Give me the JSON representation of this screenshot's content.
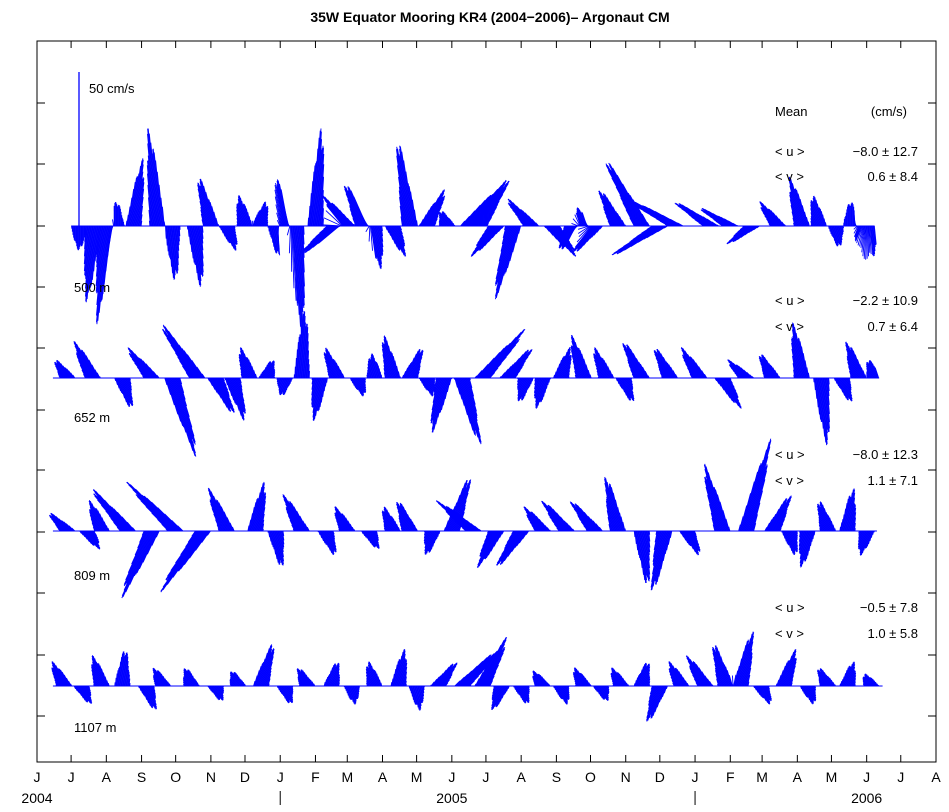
{
  "chart_data": {
    "type": "line",
    "subtype": "current velocity stick plot",
    "title": "35W Equator Mooring KR4 (2004−2006)– Argonaut CM",
    "scale_bar": {
      "label": "50 cm/s",
      "value": 50
    },
    "mean_header": {
      "label": "Mean",
      "unit": "(cm/s)"
    },
    "x_range": [
      "2004-06-01",
      "2006-08-01"
    ],
    "x_ticks": [
      {
        "date": "2004-06-01",
        "label": "J"
      },
      {
        "date": "2004-07-01",
        "label": "J"
      },
      {
        "date": "2004-08-01",
        "label": "A"
      },
      {
        "date": "2004-09-01",
        "label": "S"
      },
      {
        "date": "2004-10-01",
        "label": "O"
      },
      {
        "date": "2004-11-01",
        "label": "N"
      },
      {
        "date": "2004-12-01",
        "label": "D"
      },
      {
        "date": "2005-01-01",
        "label": "J"
      },
      {
        "date": "2005-02-01",
        "label": "F"
      },
      {
        "date": "2005-03-01",
        "label": "M"
      },
      {
        "date": "2005-04-01",
        "label": "A"
      },
      {
        "date": "2005-05-01",
        "label": "M"
      },
      {
        "date": "2005-06-01",
        "label": "J"
      },
      {
        "date": "2005-07-01",
        "label": "J"
      },
      {
        "date": "2005-08-01",
        "label": "A"
      },
      {
        "date": "2005-09-01",
        "label": "S"
      },
      {
        "date": "2005-10-01",
        "label": "O"
      },
      {
        "date": "2005-11-01",
        "label": "N"
      },
      {
        "date": "2005-12-01",
        "label": "D"
      },
      {
        "date": "2006-01-01",
        "label": "J"
      },
      {
        "date": "2006-02-01",
        "label": "F"
      },
      {
        "date": "2006-03-01",
        "label": "M"
      },
      {
        "date": "2006-04-01",
        "label": "A"
      },
      {
        "date": "2006-05-01",
        "label": "M"
      },
      {
        "date": "2006-06-01",
        "label": "J"
      },
      {
        "date": "2006-07-01",
        "label": "J"
      },
      {
        "date": "2006-08-01",
        "label": "A"
      }
    ],
    "year_labels": [
      {
        "date": "2004-06-01",
        "label": "2004"
      },
      {
        "date": "2005-06-01",
        "label": "2005"
      },
      {
        "date": "2006-06-01",
        "label": "2006"
      }
    ],
    "year_boundaries": [
      "2005-01-01",
      "2006-01-01"
    ],
    "color": "#0000ff",
    "grid": false,
    "series": [
      {
        "name": "500 m",
        "start": "2004-07-01",
        "end": "2006-06-08",
        "u_stat": {
          "label": "< u >",
          "value": "−8.0 ± 12.7"
        },
        "v_stat": {
          "label": "< v >",
          "value": "0.6 ± 8.4"
        },
        "events": [
          {
            "t": "2004-07-08",
            "v": -8,
            "u": 0
          },
          {
            "t": "2004-07-20",
            "v": -25,
            "u": -2
          },
          {
            "t": "2004-08-01",
            "v": -32,
            "u": -3
          },
          {
            "t": "2004-08-10",
            "v": 8,
            "u": 0
          },
          {
            "t": "2004-08-25",
            "v": 22,
            "u": 3
          },
          {
            "t": "2004-09-15",
            "v": 32,
            "u": -3
          },
          {
            "t": "2004-09-28",
            "v": -18,
            "u": 1
          },
          {
            "t": "2004-10-18",
            "v": -20,
            "u": 2
          },
          {
            "t": "2004-11-01",
            "v": 16,
            "u": -4
          },
          {
            "t": "2004-11-15",
            "v": -8,
            "u": 3
          },
          {
            "t": "2004-12-01",
            "v": 10,
            "u": -2
          },
          {
            "t": "2004-12-14",
            "v": 8,
            "u": 2
          },
          {
            "t": "2004-12-28",
            "v": -10,
            "u": 1
          },
          {
            "t": "2005-01-05",
            "v": 16,
            "u": -3
          },
          {
            "t": "2005-01-15",
            "v": -36,
            "u": 2
          },
          {
            "t": "2005-02-01",
            "v": 32,
            "u": 2
          },
          {
            "t": "2005-02-18",
            "v": -10,
            "u": -12
          },
          {
            "t": "2005-03-01",
            "v": 10,
            "u": -8
          },
          {
            "t": "2005-03-15",
            "v": 14,
            "u": -6
          },
          {
            "t": "2005-03-25",
            "v": -14,
            "u": 2
          },
          {
            "t": "2005-04-10",
            "v": -10,
            "u": 4
          },
          {
            "t": "2005-04-25",
            "v": 28,
            "u": -4
          },
          {
            "t": "2005-05-10",
            "v": 12,
            "u": 6
          },
          {
            "t": "2005-05-28",
            "v": 5,
            "u": -2
          },
          {
            "t": "2005-06-15",
            "v": 14,
            "u": 12
          },
          {
            "t": "2005-06-25",
            "v": 16,
            "u": 10
          },
          {
            "t": "2005-07-10",
            "v": -10,
            "u": -8
          },
          {
            "t": "2005-07-25",
            "v": -24,
            "u": -6
          },
          {
            "t": "2005-08-10",
            "v": 9,
            "u": -8
          },
          {
            "t": "2005-08-28",
            "v": -10,
            "u": 8
          },
          {
            "t": "2005-09-15",
            "v": -8,
            "u": -4
          },
          {
            "t": "2005-09-25",
            "v": 6,
            "u": -2
          },
          {
            "t": "2005-10-05",
            "v": -9,
            "u": -7
          },
          {
            "t": "2005-10-25",
            "v": 12,
            "u": -6
          },
          {
            "t": "2005-11-15",
            "v": 22,
            "u": -12
          },
          {
            "t": "2005-12-01",
            "v": -10,
            "u": -16
          },
          {
            "t": "2005-12-15",
            "v": 10,
            "u": -18
          },
          {
            "t": "2006-01-15",
            "v": 8,
            "u": -12
          },
          {
            "t": "2006-02-01",
            "v": 6,
            "u": -10
          },
          {
            "t": "2006-02-20",
            "v": -6,
            "u": -8
          },
          {
            "t": "2006-03-15",
            "v": 8,
            "u": -6
          },
          {
            "t": "2006-04-05",
            "v": 16,
            "u": -4
          },
          {
            "t": "2006-04-20",
            "v": 10,
            "u": -2
          },
          {
            "t": "2006-05-05",
            "v": -7,
            "u": 1
          },
          {
            "t": "2006-05-18",
            "v": 8,
            "u": 0
          },
          {
            "t": "2006-05-28",
            "v": -5,
            "u": -2
          },
          {
            "t": "2006-06-04",
            "v": -10,
            "u": 1
          }
        ]
      },
      {
        "name": "652 m",
        "start": "2004-06-15",
        "end": "2006-06-12",
        "u_stat": {
          "label": "< u >",
          "value": "−2.2 ± 10.9"
        },
        "v_stat": {
          "label": "< v >",
          "value": "0.7 ± 6.4"
        },
        "events": [
          {
            "t": "2004-06-28",
            "v": 6,
            "u": -4
          },
          {
            "t": "2004-07-20",
            "v": 12,
            "u": -6
          },
          {
            "t": "2004-08-15",
            "v": -10,
            "u": 3
          },
          {
            "t": "2004-09-10",
            "v": 10,
            "u": -8
          },
          {
            "t": "2004-09-28",
            "v": -26,
            "u": 8
          },
          {
            "t": "2004-10-20",
            "v": 18,
            "u": -12
          },
          {
            "t": "2004-11-05",
            "v": -12,
            "u": 6
          },
          {
            "t": "2004-11-20",
            "v": -14,
            "u": 4
          },
          {
            "t": "2004-12-05",
            "v": 10,
            "u": -3
          },
          {
            "t": "2004-12-20",
            "v": 6,
            "u": 2
          },
          {
            "t": "2005-01-05",
            "v": -6,
            "u": -1
          },
          {
            "t": "2005-01-20",
            "v": 22,
            "u": 1
          },
          {
            "t": "2005-02-05",
            "v": -14,
            "u": -2
          },
          {
            "t": "2005-02-20",
            "v": 10,
            "u": -4
          },
          {
            "t": "2005-03-10",
            "v": -6,
            "u": 2
          },
          {
            "t": "2005-03-25",
            "v": 8,
            "u": -1
          },
          {
            "t": "2005-04-10",
            "v": 14,
            "u": -3
          },
          {
            "t": "2005-04-25",
            "v": 10,
            "u": 4
          },
          {
            "t": "2005-05-10",
            "v": -6,
            "u": 2
          },
          {
            "t": "2005-05-25",
            "v": -18,
            "u": -4
          },
          {
            "t": "2005-06-10",
            "v": -22,
            "u": 6
          },
          {
            "t": "2005-06-28",
            "v": 16,
            "u": 14
          },
          {
            "t": "2005-07-20",
            "v": 10,
            "u": 8
          },
          {
            "t": "2005-08-05",
            "v": -8,
            "u": -2
          },
          {
            "t": "2005-08-20",
            "v": -10,
            "u": -2
          },
          {
            "t": "2005-09-05",
            "v": 10,
            "u": 3
          },
          {
            "t": "2005-09-25",
            "v": 14,
            "u": -4
          },
          {
            "t": "2005-10-15",
            "v": 10,
            "u": -4
          },
          {
            "t": "2005-10-30",
            "v": -8,
            "u": 3
          },
          {
            "t": "2005-11-15",
            "v": 12,
            "u": -6
          },
          {
            "t": "2005-12-10",
            "v": 10,
            "u": -5
          },
          {
            "t": "2006-01-05",
            "v": 10,
            "u": -6
          },
          {
            "t": "2006-01-25",
            "v": -10,
            "u": 6
          },
          {
            "t": "2006-02-15",
            "v": 6,
            "u": -6
          },
          {
            "t": "2006-03-10",
            "v": 8,
            "u": -4
          },
          {
            "t": "2006-04-05",
            "v": 18,
            "u": -3
          },
          {
            "t": "2006-04-22",
            "v": -22,
            "u": 2
          },
          {
            "t": "2006-05-10",
            "v": -8,
            "u": 3
          },
          {
            "t": "2006-05-25",
            "v": 12,
            "u": -4
          },
          {
            "t": "2006-06-08",
            "v": 6,
            "u": -2
          }
        ]
      },
      {
        "name": "809 m",
        "start": "2004-06-15",
        "end": "2006-06-10",
        "u_stat": {
          "label": "< u >",
          "value": "−8.0 ± 12.3"
        },
        "v_stat": {
          "label": "< v >",
          "value": "1.1 ± 7.1"
        },
        "events": [
          {
            "t": "2004-06-28",
            "v": 6,
            "u": -6
          },
          {
            "t": "2004-07-15",
            "v": -6,
            "u": 4
          },
          {
            "t": "2004-07-28",
            "v": 10,
            "u": -4
          },
          {
            "t": "2004-08-20",
            "v": 14,
            "u": -12
          },
          {
            "t": "2004-09-10",
            "v": -22,
            "u": -10
          },
          {
            "t": "2004-10-01",
            "v": 16,
            "u": -16
          },
          {
            "t": "2004-10-25",
            "v": -20,
            "u": -14
          },
          {
            "t": "2004-11-15",
            "v": 14,
            "u": -6
          },
          {
            "t": "2004-12-10",
            "v": 16,
            "u": 3
          },
          {
            "t": "2004-12-28",
            "v": -12,
            "u": 2
          },
          {
            "t": "2005-01-20",
            "v": 12,
            "u": -6
          },
          {
            "t": "2005-02-10",
            "v": -8,
            "u": 3
          },
          {
            "t": "2005-03-01",
            "v": 8,
            "u": -4
          },
          {
            "t": "2005-03-20",
            "v": -6,
            "u": 3
          },
          {
            "t": "2005-04-10",
            "v": 8,
            "u": -3
          },
          {
            "t": "2005-04-25",
            "v": 10,
            "u": -4
          },
          {
            "t": "2005-05-15",
            "v": -8,
            "u": -2
          },
          {
            "t": "2005-06-01",
            "v": 18,
            "u": 6
          },
          {
            "t": "2005-06-20",
            "v": 10,
            "u": -12
          },
          {
            "t": "2005-07-10",
            "v": -12,
            "u": -6
          },
          {
            "t": "2005-08-01",
            "v": -12,
            "u": -8
          },
          {
            "t": "2005-08-20",
            "v": 8,
            "u": -6
          },
          {
            "t": "2005-09-10",
            "v": 10,
            "u": -8
          },
          {
            "t": "2005-10-05",
            "v": 10,
            "u": -8
          },
          {
            "t": "2005-10-25",
            "v": 18,
            "u": -4
          },
          {
            "t": "2005-11-15",
            "v": -18,
            "u": 2
          },
          {
            "t": "2005-12-05",
            "v": -20,
            "u": -4
          },
          {
            "t": "2005-12-25",
            "v": -8,
            "u": 4
          },
          {
            "t": "2006-01-25",
            "v": 22,
            "u": -6
          },
          {
            "t": "2006-02-15",
            "v": 30,
            "u": 8
          },
          {
            "t": "2006-03-10",
            "v": 12,
            "u": 6
          },
          {
            "t": "2006-03-25",
            "v": -8,
            "u": 2
          },
          {
            "t": "2006-04-10",
            "v": -12,
            "u": -2
          },
          {
            "t": "2006-04-28",
            "v": 10,
            "u": -3
          },
          {
            "t": "2006-05-15",
            "v": 14,
            "u": 2
          },
          {
            "t": "2006-06-01",
            "v": -8,
            "u": -2
          }
        ]
      },
      {
        "name": "1107 m",
        "start": "2004-06-15",
        "end": "2006-06-15",
        "u_stat": {
          "label": "< u >",
          "value": "−0.5 ± 7.8"
        },
        "v_stat": {
          "label": "< v >",
          "value": "1.0 ± 5.8"
        },
        "events": [
          {
            "t": "2004-06-25",
            "v": 8,
            "u": -4
          },
          {
            "t": "2004-07-10",
            "v": -6,
            "u": 3
          },
          {
            "t": "2004-07-28",
            "v": 10,
            "u": -3
          },
          {
            "t": "2004-08-15",
            "v": 12,
            "u": 1
          },
          {
            "t": "2004-09-05",
            "v": -8,
            "u": 3
          },
          {
            "t": "2004-09-20",
            "v": 6,
            "u": -3
          },
          {
            "t": "2004-10-15",
            "v": 6,
            "u": -2
          },
          {
            "t": "2004-11-05",
            "v": -5,
            "u": 2
          },
          {
            "t": "2004-11-25",
            "v": 5,
            "u": -2
          },
          {
            "t": "2004-12-15",
            "v": 14,
            "u": 4
          },
          {
            "t": "2005-01-05",
            "v": -6,
            "u": 2
          },
          {
            "t": "2005-01-25",
            "v": 6,
            "u": -3
          },
          {
            "t": "2005-02-15",
            "v": 8,
            "u": 2
          },
          {
            "t": "2005-03-05",
            "v": -6,
            "u": 1
          },
          {
            "t": "2005-03-25",
            "v": 8,
            "u": -2
          },
          {
            "t": "2005-04-15",
            "v": 12,
            "u": 2
          },
          {
            "t": "2005-05-01",
            "v": -8,
            "u": 1
          },
          {
            "t": "2005-05-20",
            "v": 8,
            "u": 6
          },
          {
            "t": "2005-06-10",
            "v": 12,
            "u": 12
          },
          {
            "t": "2005-06-28",
            "v": 16,
            "u": 8
          },
          {
            "t": "2005-07-15",
            "v": -8,
            "u": -3
          },
          {
            "t": "2005-08-01",
            "v": -6,
            "u": 2
          },
          {
            "t": "2005-08-20",
            "v": 5,
            "u": -3
          },
          {
            "t": "2005-09-05",
            "v": -6,
            "u": 2
          },
          {
            "t": "2005-09-25",
            "v": 6,
            "u": -3
          },
          {
            "t": "2005-10-10",
            "v": -5,
            "u": 2
          },
          {
            "t": "2005-10-28",
            "v": 6,
            "u": -3
          },
          {
            "t": "2005-11-15",
            "v": 8,
            "u": 2
          },
          {
            "t": "2005-12-01",
            "v": -12,
            "u": -4
          },
          {
            "t": "2005-12-20",
            "v": 8,
            "u": -4
          },
          {
            "t": "2006-01-10",
            "v": 10,
            "u": -6
          },
          {
            "t": "2006-01-28",
            "v": 14,
            "u": -4
          },
          {
            "t": "2006-02-10",
            "v": 18,
            "u": 4
          },
          {
            "t": "2006-02-28",
            "v": -6,
            "u": 3
          },
          {
            "t": "2006-03-20",
            "v": 12,
            "u": 4
          },
          {
            "t": "2006-04-10",
            "v": -6,
            "u": 2
          },
          {
            "t": "2006-04-28",
            "v": 6,
            "u": -3
          },
          {
            "t": "2006-05-15",
            "v": 8,
            "u": 2
          },
          {
            "t": "2006-06-05",
            "v": 4,
            "u": -2
          }
        ]
      }
    ]
  }
}
